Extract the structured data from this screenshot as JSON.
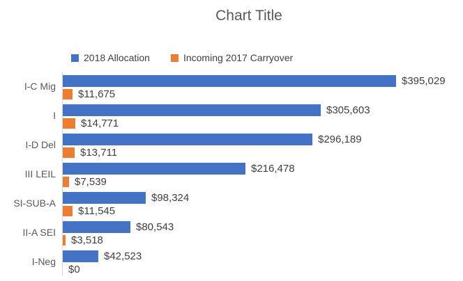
{
  "title": "Chart Title",
  "legend": {
    "items": [
      {
        "label": "2018 Allocation",
        "color": "#4472C4"
      },
      {
        "label": "Incoming 2017 Carryover",
        "color": "#ED7D31"
      }
    ]
  },
  "chart_data": {
    "type": "bar",
    "orientation": "horizontal",
    "title": "Chart Title",
    "categories": [
      "I-C Mig",
      "I",
      "I-D Del",
      "III LEIL",
      "SI-SUB-A",
      "II-A SEI",
      "I-Neg"
    ],
    "series": [
      {
        "name": "2018 Allocation",
        "color": "#4472C4",
        "values": [
          395029,
          305603,
          296189,
          216478,
          98324,
          80543,
          42523
        ],
        "labels": [
          "$395,029",
          "$305,603",
          "$296,189",
          "$216,478",
          "$98,324",
          "$80,543",
          "$42,523"
        ]
      },
      {
        "name": "Incoming 2017 Carryover",
        "color": "#ED7D31",
        "values": [
          11675,
          14771,
          13711,
          7539,
          11545,
          3518,
          0
        ],
        "labels": [
          "$11,675",
          "$14,771",
          "$13,711",
          "$7,539",
          "$11,545",
          "$3,518",
          "$0"
        ]
      }
    ],
    "value_format": "$#,##0",
    "label_position": "outside-end",
    "legend_position": "top",
    "grid": false,
    "value_axis_visible": false,
    "colors": {
      "axis_line": "#D9D9D9",
      "title_text": "#595959",
      "category_text": "#595959",
      "value_label_text": "#404040"
    }
  }
}
